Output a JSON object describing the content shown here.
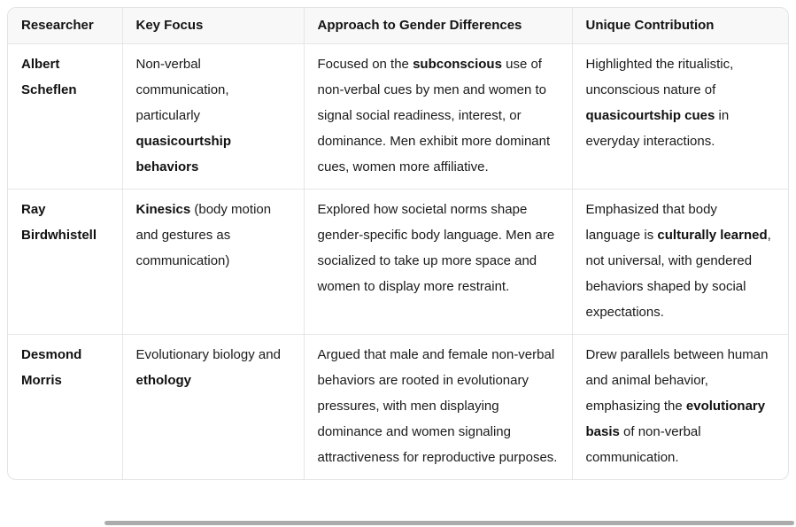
{
  "colors": {
    "table_border": "#e3e3e5",
    "cell_border": "#e6e6e8",
    "header_background": "#f8f8f9",
    "text": "#1a1a1a"
  },
  "table": {
    "headers": [
      "Researcher",
      "Key Focus",
      "Approach to Gender Differences",
      "Unique Contribution"
    ],
    "rows": [
      [
        [
          {
            "t": "Albert Scheflen",
            "b": true
          }
        ],
        [
          {
            "t": "Non-verbal communication, particularly ",
            "b": false
          },
          {
            "t": "quasicourtship behaviors",
            "b": true
          }
        ],
        [
          {
            "t": "Focused on the ",
            "b": false
          },
          {
            "t": "subconscious",
            "b": true
          },
          {
            "t": " use of non-verbal cues by men and women to signal social readiness, interest, or dominance. Men exhibit more dominant cues, women more affiliative.",
            "b": false
          }
        ],
        [
          {
            "t": "Highlighted the ritualistic, unconscious nature of ",
            "b": false
          },
          {
            "t": "quasicourtship cues",
            "b": true
          },
          {
            "t": " in everyday interactions.",
            "b": false
          }
        ]
      ],
      [
        [
          {
            "t": "Ray Birdwhistell",
            "b": true
          }
        ],
        [
          {
            "t": "Kinesics",
            "b": true
          },
          {
            "t": " (body motion and gestures as communication)",
            "b": false
          }
        ],
        [
          {
            "t": "Explored how societal norms shape gender-specific body language. Men are socialized to take up more space and women to display more restraint.",
            "b": false
          }
        ],
        [
          {
            "t": "Emphasized that body language is ",
            "b": false
          },
          {
            "t": "culturally learned",
            "b": true
          },
          {
            "t": ", not universal, with gendered behaviors shaped by social expectations.",
            "b": false
          }
        ]
      ],
      [
        [
          {
            "t": "Desmond Morris",
            "b": true
          }
        ],
        [
          {
            "t": "Evolutionary biology and ",
            "b": false
          },
          {
            "t": "ethology",
            "b": true
          }
        ],
        [
          {
            "t": "Argued that male and female non-verbal behaviors are rooted in evolutionary pressures, with men displaying dominance and women signaling attractiveness for reproductive purposes.",
            "b": false
          }
        ],
        [
          {
            "t": "Drew parallels between human and animal behavior, emphasizing the ",
            "b": false
          },
          {
            "t": "evolutionary basis",
            "b": true
          },
          {
            "t": " of non-verbal communication.",
            "b": false
          }
        ]
      ]
    ]
  }
}
